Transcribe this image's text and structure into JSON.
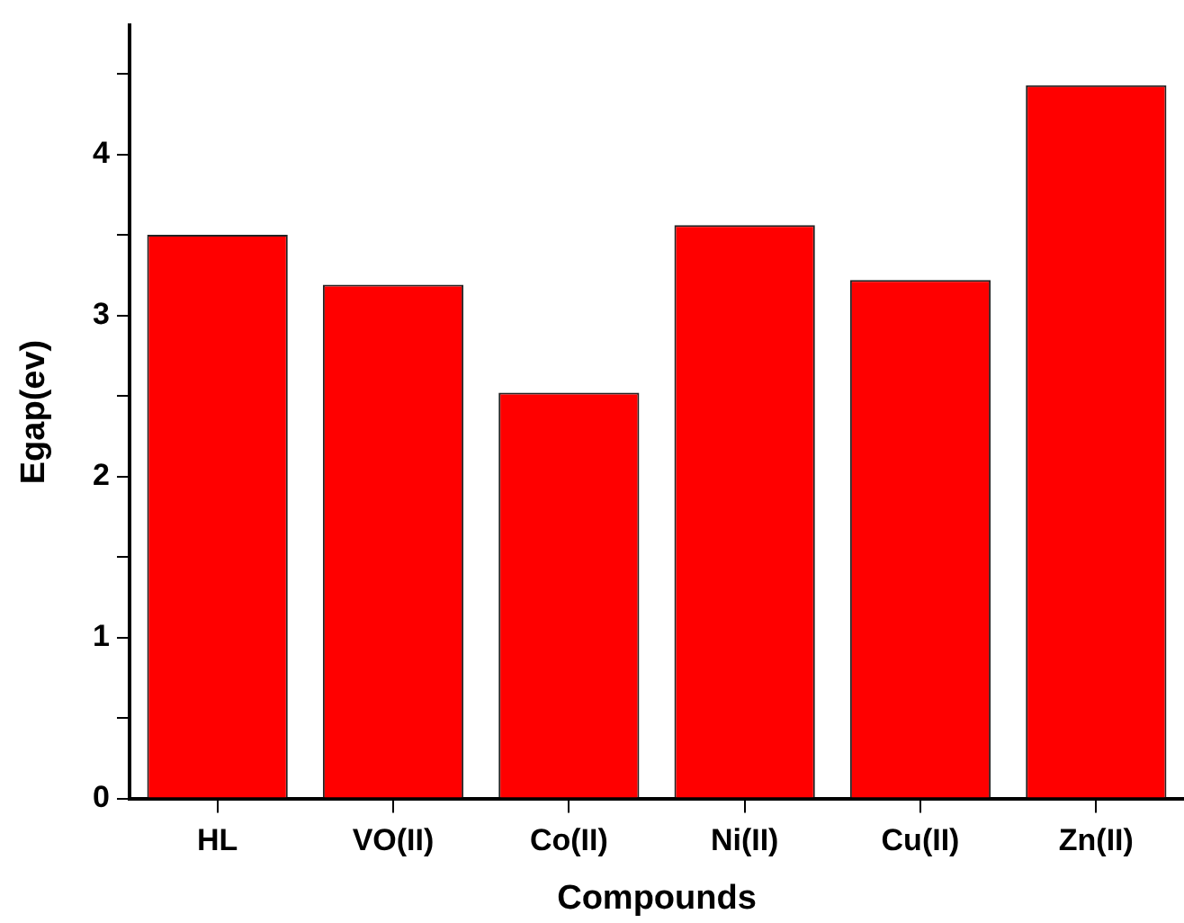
{
  "chart_data": {
    "type": "bar",
    "xlabel": "Compounds",
    "ylabel": "Egap(ev)",
    "categories": [
      "HL",
      "VO(II)",
      "Co(II)",
      "Ni(II)",
      "Cu(II)",
      "Zn(II)"
    ],
    "values": [
      3.5,
      3.19,
      2.52,
      3.56,
      3.22,
      4.43
    ],
    "color": "#ff0000",
    "ylim": [
      0,
      4.8
    ],
    "yticks": [
      0,
      {
        "value": 0.5,
        "label": null
      },
      1,
      {
        "value": 1.5,
        "label": null
      },
      2,
      {
        "value": 2.5,
        "label": null
      },
      3,
      {
        "value": 3.5,
        "label": null
      },
      4,
      {
        "value": 4.5,
        "label": null
      }
    ],
    "grid": false,
    "legend": false
  }
}
